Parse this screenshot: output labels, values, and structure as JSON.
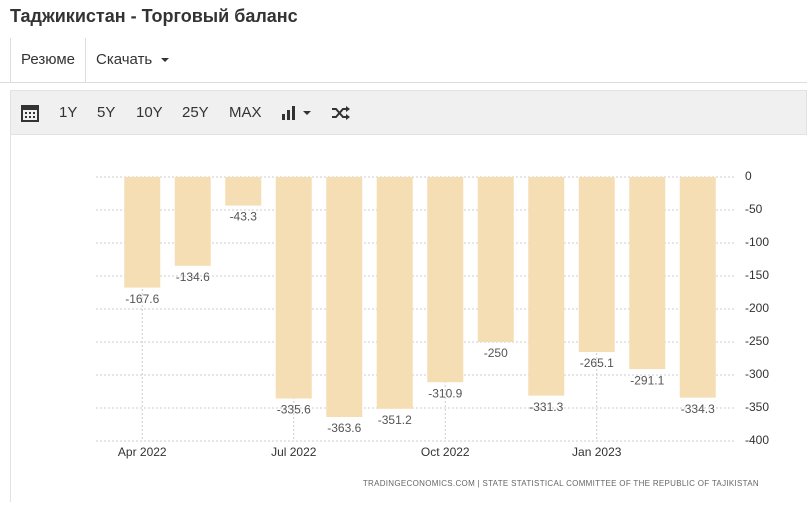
{
  "header": {
    "title": "Таджикистан - Торговый баланс"
  },
  "tabs": [
    "Резюме",
    "Скачать"
  ],
  "toolbar": [
    "1Y",
    "5Y",
    "10Y",
    "25Y",
    "MAX"
  ],
  "chart_data": {
    "type": "bar",
    "categories": [
      "Apr 2022",
      null,
      null,
      "Jul 2022",
      null,
      null,
      "Oct 2022",
      null,
      null,
      "Jan 2023",
      null,
      null
    ],
    "values": [
      -167.6,
      -134.6,
      -43.3,
      -335.6,
      -363.6,
      -351.2,
      -310.9,
      -250,
      -331.3,
      -265.1,
      -291.1,
      -334.3
    ],
    "color": "#f5deb3",
    "ylim": [
      -400,
      0
    ],
    "yticks": [
      0,
      -50,
      -100,
      -150,
      -200,
      -250,
      -300,
      -350,
      -400
    ],
    "grid": true,
    "source": "TRADINGECONOMICS.COM | STATE STATISTICAL COMMITTEE OF THE REPUBLIC OF TAJIKISTAN"
  }
}
